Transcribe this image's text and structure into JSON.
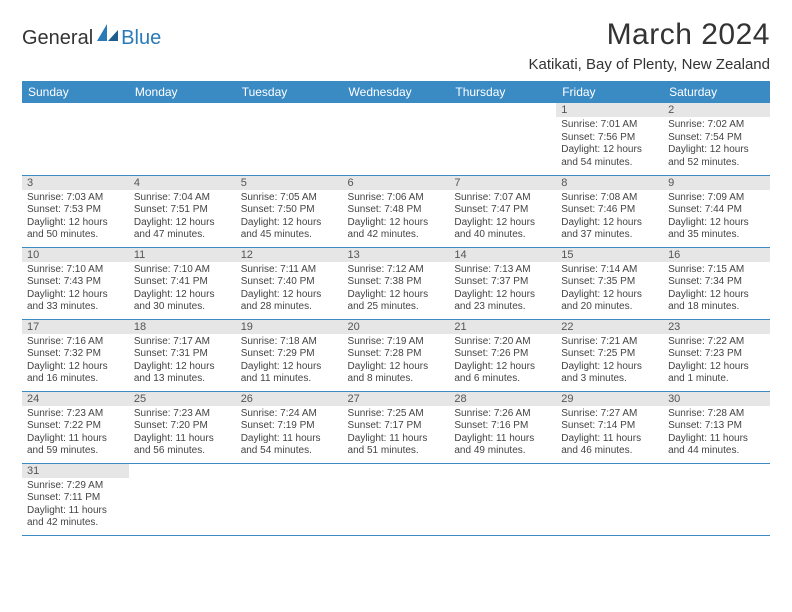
{
  "brand": {
    "part1": "General",
    "part2": "Blue"
  },
  "title": "March 2024",
  "location": "Katikati, Bay of Plenty, New Zealand",
  "colors": {
    "header_bg": "#3a8ac4",
    "header_fg": "#ffffff",
    "daynum_bg": "#e6e6e6",
    "row_divider": "#3a8ac4",
    "logo_blue": "#2a7ab8"
  },
  "fonts": {
    "title_size_pt": 22,
    "location_size_pt": 11,
    "th_size_pt": 9,
    "cell_size_pt": 7.5
  },
  "layout": {
    "cols": 7,
    "rows": 6
  },
  "weekdays": [
    "Sunday",
    "Monday",
    "Tuesday",
    "Wednesday",
    "Thursday",
    "Friday",
    "Saturday"
  ],
  "weeks": [
    [
      null,
      null,
      null,
      null,
      null,
      {
        "n": "1",
        "sr": "7:01 AM",
        "ss": "7:56 PM",
        "dl": "12 hours and 54 minutes."
      },
      {
        "n": "2",
        "sr": "7:02 AM",
        "ss": "7:54 PM",
        "dl": "12 hours and 52 minutes."
      }
    ],
    [
      {
        "n": "3",
        "sr": "7:03 AM",
        "ss": "7:53 PM",
        "dl": "12 hours and 50 minutes."
      },
      {
        "n": "4",
        "sr": "7:04 AM",
        "ss": "7:51 PM",
        "dl": "12 hours and 47 minutes."
      },
      {
        "n": "5",
        "sr": "7:05 AM",
        "ss": "7:50 PM",
        "dl": "12 hours and 45 minutes."
      },
      {
        "n": "6",
        "sr": "7:06 AM",
        "ss": "7:48 PM",
        "dl": "12 hours and 42 minutes."
      },
      {
        "n": "7",
        "sr": "7:07 AM",
        "ss": "7:47 PM",
        "dl": "12 hours and 40 minutes."
      },
      {
        "n": "8",
        "sr": "7:08 AM",
        "ss": "7:46 PM",
        "dl": "12 hours and 37 minutes."
      },
      {
        "n": "9",
        "sr": "7:09 AM",
        "ss": "7:44 PM",
        "dl": "12 hours and 35 minutes."
      }
    ],
    [
      {
        "n": "10",
        "sr": "7:10 AM",
        "ss": "7:43 PM",
        "dl": "12 hours and 33 minutes."
      },
      {
        "n": "11",
        "sr": "7:10 AM",
        "ss": "7:41 PM",
        "dl": "12 hours and 30 minutes."
      },
      {
        "n": "12",
        "sr": "7:11 AM",
        "ss": "7:40 PM",
        "dl": "12 hours and 28 minutes."
      },
      {
        "n": "13",
        "sr": "7:12 AM",
        "ss": "7:38 PM",
        "dl": "12 hours and 25 minutes."
      },
      {
        "n": "14",
        "sr": "7:13 AM",
        "ss": "7:37 PM",
        "dl": "12 hours and 23 minutes."
      },
      {
        "n": "15",
        "sr": "7:14 AM",
        "ss": "7:35 PM",
        "dl": "12 hours and 20 minutes."
      },
      {
        "n": "16",
        "sr": "7:15 AM",
        "ss": "7:34 PM",
        "dl": "12 hours and 18 minutes."
      }
    ],
    [
      {
        "n": "17",
        "sr": "7:16 AM",
        "ss": "7:32 PM",
        "dl": "12 hours and 16 minutes."
      },
      {
        "n": "18",
        "sr": "7:17 AM",
        "ss": "7:31 PM",
        "dl": "12 hours and 13 minutes."
      },
      {
        "n": "19",
        "sr": "7:18 AM",
        "ss": "7:29 PM",
        "dl": "12 hours and 11 minutes."
      },
      {
        "n": "20",
        "sr": "7:19 AM",
        "ss": "7:28 PM",
        "dl": "12 hours and 8 minutes."
      },
      {
        "n": "21",
        "sr": "7:20 AM",
        "ss": "7:26 PM",
        "dl": "12 hours and 6 minutes."
      },
      {
        "n": "22",
        "sr": "7:21 AM",
        "ss": "7:25 PM",
        "dl": "12 hours and 3 minutes."
      },
      {
        "n": "23",
        "sr": "7:22 AM",
        "ss": "7:23 PM",
        "dl": "12 hours and 1 minute."
      }
    ],
    [
      {
        "n": "24",
        "sr": "7:23 AM",
        "ss": "7:22 PM",
        "dl": "11 hours and 59 minutes."
      },
      {
        "n": "25",
        "sr": "7:23 AM",
        "ss": "7:20 PM",
        "dl": "11 hours and 56 minutes."
      },
      {
        "n": "26",
        "sr": "7:24 AM",
        "ss": "7:19 PM",
        "dl": "11 hours and 54 minutes."
      },
      {
        "n": "27",
        "sr": "7:25 AM",
        "ss": "7:17 PM",
        "dl": "11 hours and 51 minutes."
      },
      {
        "n": "28",
        "sr": "7:26 AM",
        "ss": "7:16 PM",
        "dl": "11 hours and 49 minutes."
      },
      {
        "n": "29",
        "sr": "7:27 AM",
        "ss": "7:14 PM",
        "dl": "11 hours and 46 minutes."
      },
      {
        "n": "30",
        "sr": "7:28 AM",
        "ss": "7:13 PM",
        "dl": "11 hours and 44 minutes."
      }
    ],
    [
      {
        "n": "31",
        "sr": "7:29 AM",
        "ss": "7:11 PM",
        "dl": "11 hours and 42 minutes."
      },
      null,
      null,
      null,
      null,
      null,
      null
    ]
  ],
  "labels": {
    "sunrise": "Sunrise: ",
    "sunset": "Sunset: ",
    "daylight": "Daylight: "
  }
}
